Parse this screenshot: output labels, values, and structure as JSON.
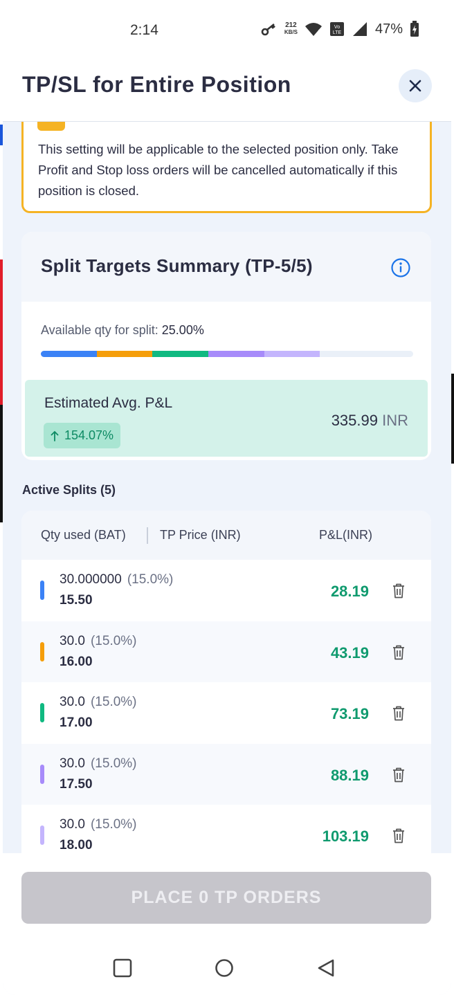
{
  "status_bar": {
    "time": "2:14",
    "speed_value": "212",
    "speed_unit": "KB/S",
    "battery": "47%"
  },
  "header": {
    "title": "TP/SL for Entire Position"
  },
  "note": {
    "text": "This setting will be applicable to the selected position only. Take Profit and Stop loss orders will be cancelled automatically if this position is closed."
  },
  "summary": {
    "title": "Split Targets Summary (TP-5/5)",
    "available_label": "Available qty for split:",
    "available_value": "25.00%",
    "progress_fill_fraction": 0.75,
    "segment_colors": [
      "#3b82f6",
      "#f59e0b",
      "#10b981",
      "#a78bfa",
      "#c4b5fd"
    ],
    "pnl_label": "Estimated Avg. P&L",
    "pnl_change": "154.07%",
    "pnl_value": "335.99",
    "pnl_currency": "INR"
  },
  "active_splits": {
    "title": "Active Splits (5)",
    "col_qty": "Qty used (BAT)",
    "col_price": "TP Price (INR)",
    "col_pnl": "P&L(INR)",
    "rows": [
      {
        "qty": "30.000000",
        "pct": "(15.0%)",
        "price": "15.50",
        "pnl": "28.19",
        "color": "#3b82f6"
      },
      {
        "qty": "30.0",
        "pct": "(15.0%)",
        "price": "16.00",
        "pnl": "43.19",
        "color": "#f59e0b"
      },
      {
        "qty": "30.0",
        "pct": "(15.0%)",
        "price": "17.00",
        "pnl": "73.19",
        "color": "#10b981"
      },
      {
        "qty": "30.0",
        "pct": "(15.0%)",
        "price": "17.50",
        "pnl": "88.19",
        "color": "#a78bfa"
      },
      {
        "qty": "30.0",
        "pct": "(15.0%)",
        "price": "18.00",
        "pnl": "103.19",
        "color": "#c4b5fd"
      }
    ]
  },
  "footer": {
    "place_button": "PLACE 0 TP ORDERS"
  },
  "colors": {
    "accent": "#1a73e8",
    "note_border": "#f5b324",
    "profit": "#0f9a6e"
  }
}
